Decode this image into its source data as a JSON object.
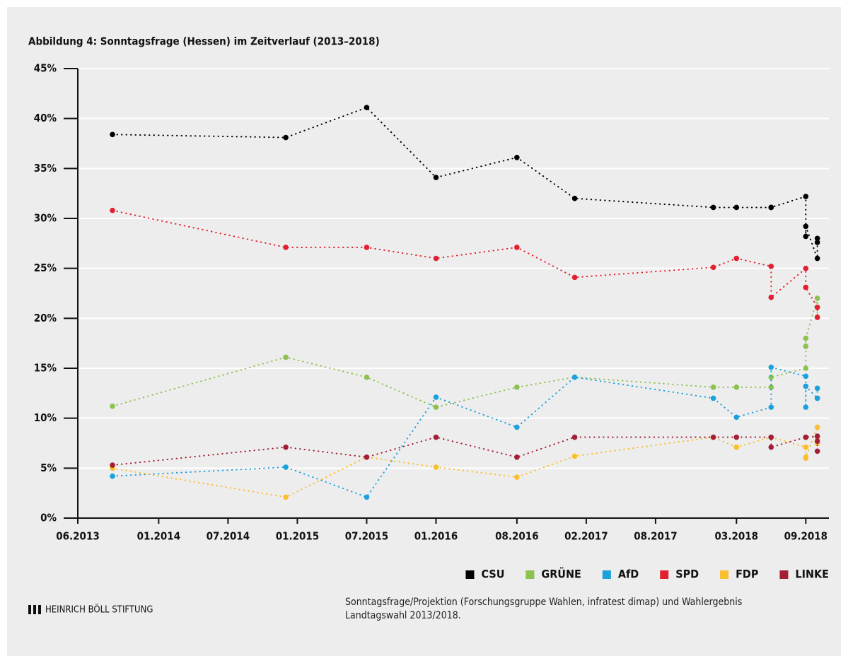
{
  "chart_data": {
    "type": "line",
    "title": "Abbildung 4: Sonntagsfrage (Hessen) im Zeitverlauf (2013–2018)",
    "xlim": [
      "06.2013",
      "11.2018"
    ],
    "xticks": [
      "06.2013",
      "01.2014",
      "07.2014",
      "01.2015",
      "07.2015",
      "01.2016",
      "08.2016",
      "02.2017",
      "08.2017",
      "03.2018",
      "09.2018"
    ],
    "ylim": [
      0,
      45
    ],
    "yticks": [
      {
        "value": 0,
        "label": "0%"
      },
      {
        "value": 5,
        "label": "5%"
      },
      {
        "value": 10,
        "label": "10%"
      },
      {
        "value": 15,
        "label": "15%"
      },
      {
        "value": 20,
        "label": "20%"
      },
      {
        "value": 25,
        "label": "25%"
      },
      {
        "value": 30,
        "label": "30%"
      },
      {
        "value": 35,
        "label": "35%"
      },
      {
        "value": 40,
        "label": "40%"
      },
      {
        "value": 45,
        "label": "45%"
      }
    ],
    "grid": true,
    "legend": "bottom-right",
    "series": [
      {
        "name": "CSU",
        "color": "#000000",
        "x": [
          "09.2013",
          "12.2014",
          "07.2015",
          "01.2016",
          "08.2016",
          "01.2017",
          "01.2018",
          "03.2018",
          "06.2018",
          "06.2018",
          "09.2018",
          "09.2018",
          "09.2018",
          "10.2018",
          "10.2018",
          "10.2018"
        ],
        "values": [
          38.4,
          38.1,
          41.1,
          34.1,
          36.1,
          32,
          31.1,
          31.1,
          31.1,
          31.1,
          32.2,
          28.2,
          29.2,
          26,
          28,
          27.6
        ]
      },
      {
        "name": "GRÜNE",
        "color": "#8dc150",
        "x": [
          "09.2013",
          "12.2014",
          "07.2015",
          "01.2016",
          "08.2016",
          "01.2017",
          "01.2018",
          "03.2018",
          "06.2018",
          "06.2018",
          "09.2018",
          "09.2018",
          "09.2018",
          "10.2018",
          "10.2018"
        ],
        "values": [
          11.2,
          16.1,
          14.1,
          11.1,
          13.1,
          14.1,
          13.1,
          13.1,
          13.1,
          14.1,
          15,
          17.2,
          18,
          22,
          20.1
        ]
      },
      {
        "name": "AfD",
        "color": "#1ba1dc",
        "x": [
          "09.2013",
          "12.2014",
          "07.2015",
          "01.2016",
          "08.2016",
          "01.2017",
          "01.2018",
          "03.2018",
          "06.2018",
          "06.2018",
          "09.2018",
          "09.2018",
          "09.2018",
          "10.2018",
          "10.2018",
          "10.2018"
        ],
        "values": [
          4.2,
          5.1,
          2.1,
          12.1,
          9.1,
          14.1,
          12,
          10.1,
          11.1,
          15.1,
          14.2,
          11.1,
          13.2,
          12,
          12,
          13
        ]
      },
      {
        "name": "SPD",
        "color": "#e2202f",
        "x": [
          "09.2013",
          "12.2014",
          "07.2015",
          "01.2016",
          "08.2016",
          "01.2017",
          "01.2018",
          "03.2018",
          "06.2018",
          "06.2018",
          "09.2018",
          "09.2018",
          "09.2018",
          "10.2018",
          "10.2018"
        ],
        "values": [
          30.8,
          27.1,
          27.1,
          26,
          27.1,
          24.1,
          25.1,
          26,
          25.2,
          22.1,
          25,
          23.1,
          23.1,
          21.1,
          20.1
        ]
      },
      {
        "name": "FDP",
        "color": "#f9bf2e",
        "x": [
          "09.2013",
          "12.2014",
          "07.2015",
          "01.2016",
          "08.2016",
          "01.2017",
          "01.2018",
          "03.2018",
          "06.2018",
          "09.2018",
          "09.2018",
          "09.2018",
          "10.2018",
          "10.2018",
          "10.2018"
        ],
        "values": [
          5,
          2.1,
          6.1,
          5.1,
          4.1,
          6.2,
          8.1,
          7.1,
          8.1,
          7.1,
          6,
          6.1,
          9.1,
          8,
          7.5
        ]
      },
      {
        "name": "LINKE",
        "color": "#a31f36",
        "x": [
          "09.2013",
          "12.2014",
          "07.2015",
          "01.2016",
          "08.2016",
          "01.2017",
          "01.2018",
          "03.2018",
          "06.2018",
          "06.2018",
          "09.2018",
          "09.2018",
          "10.2018",
          "10.2018",
          "10.2018"
        ],
        "values": [
          5.3,
          7.1,
          6.1,
          8.1,
          6.1,
          8.1,
          8.1,
          8.1,
          8.1,
          7.1,
          8.1,
          8.1,
          8.2,
          7.7,
          6.7
        ]
      }
    ]
  },
  "source": "Sonntagsfrage/Projektion (Forschungsgruppe Wahlen, infratest dimap) und Wahlergebnis Landtagswahl 2013/2018.",
  "brand": "HEINRICH BÖLL STIFTUNG"
}
